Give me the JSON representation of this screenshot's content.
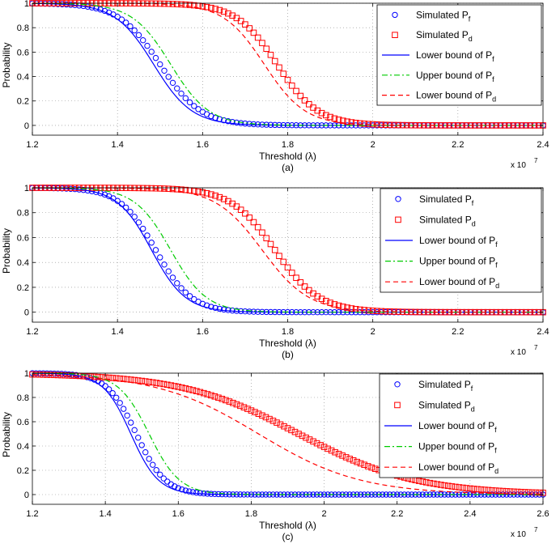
{
  "chart_data": [
    {
      "type": "line",
      "panel_label": "(a)",
      "xlabel": "Threshold (λ)",
      "ylabel": "Probability",
      "x_multiplier": "x 10",
      "x_multiplier_exp": "7",
      "xlim": [
        1.2,
        2.4
      ],
      "ylim": [
        -0.08,
        1.0
      ],
      "xticks": [
        1.2,
        1.4,
        1.6,
        1.8,
        2.0,
        2.2,
        2.4
      ],
      "xtick_labels": [
        "1.2",
        "1.4",
        "1.6",
        "1.8",
        "2",
        "2.2",
        "2.4"
      ],
      "yticks": [
        0,
        0.2,
        0.4,
        0.6,
        0.8,
        1
      ],
      "ytick_labels": [
        "0",
        "0.2",
        "0.4",
        "0.6",
        "0.8",
        "1"
      ],
      "grid": true,
      "legend_position": "top-right",
      "series": [
        {
          "name": "Simulated Pf",
          "label": "Simulated P",
          "sub": "f",
          "marker": "circle",
          "color": "#0000ff",
          "center": 1.5,
          "scale": 0.048,
          "x_start": 1.2,
          "x_end": 2.4,
          "n_points": 121
        },
        {
          "name": "Simulated Pd",
          "label": "Simulated P",
          "sub": "d",
          "marker": "square",
          "color": "#ff0000",
          "center": 1.775,
          "scale": 0.048,
          "x_start": 1.2,
          "x_end": 2.4,
          "n_points": 121
        },
        {
          "name": "Lower bound of Pf",
          "label": "Lower bound of P",
          "sub": "f",
          "line": "solid",
          "color": "#0000ff",
          "center": 1.485,
          "scale": 0.045
        },
        {
          "name": "Upper bound of Pf",
          "label": "Upper bound of P",
          "sub": "f",
          "line": "dashdot",
          "color": "#00cc00",
          "center": 1.525,
          "scale": 0.045
        },
        {
          "name": "Lower bound of Pd",
          "label": "Lower bound of P",
          "sub": "d",
          "line": "dashed",
          "color": "#ff0000",
          "center": 1.745,
          "scale": 0.048
        }
      ]
    },
    {
      "type": "line",
      "panel_label": "(b)",
      "xlabel": "Threshold (λ)",
      "ylabel": "Probability",
      "x_multiplier": "x 10",
      "x_multiplier_exp": "7",
      "xlim": [
        1.2,
        2.4
      ],
      "ylim": [
        -0.08,
        1.0
      ],
      "xticks": [
        1.2,
        1.4,
        1.6,
        1.8,
        2.0,
        2.2,
        2.4
      ],
      "xtick_labels": [
        "1.2",
        "1.4",
        "1.6",
        "1.8",
        "2",
        "2.2",
        "2.4"
      ],
      "yticks": [
        0,
        0.2,
        0.4,
        0.6,
        0.8,
        1
      ],
      "ytick_labels": [
        "0",
        "0.2",
        "0.4",
        "0.6",
        "0.8",
        "1"
      ],
      "grid": true,
      "legend_position": "top-right",
      "series": [
        {
          "name": "Simulated Pf",
          "label": "Simulated P",
          "sub": "f",
          "marker": "circle",
          "color": "#0000ff",
          "center": 1.49,
          "scale": 0.042,
          "x_start": 1.2,
          "x_end": 2.4,
          "n_points": 121
        },
        {
          "name": "Simulated Pd",
          "label": "Simulated  P",
          "sub": "d",
          "marker": "square",
          "color": "#ff0000",
          "center": 1.77,
          "scale": 0.052,
          "x_start": 1.2,
          "x_end": 2.4,
          "n_points": 121
        },
        {
          "name": "Lower bound of Pf",
          "label": "Lower bound of P",
          "sub": "f",
          "line": "solid",
          "color": "#0000ff",
          "center": 1.48,
          "scale": 0.04
        },
        {
          "name": "Upper bound of Pf",
          "label": "Upper bound of P",
          "sub": "f",
          "line": "dashdot",
          "color": "#00cc00",
          "center": 1.525,
          "scale": 0.042
        },
        {
          "name": "Lower bound of Pd",
          "label": "Lower bound of P",
          "sub": "d",
          "line": "dashed",
          "color": "#ff0000",
          "center": 1.74,
          "scale": 0.055
        }
      ]
    },
    {
      "type": "line",
      "panel_label": "(c)",
      "xlabel": "Threshold (λ)",
      "ylabel": "Probability",
      "x_multiplier": "x 10",
      "x_multiplier_exp": "7",
      "xlim": [
        1.2,
        2.6
      ],
      "ylim": [
        -0.08,
        1.0
      ],
      "xticks": [
        1.2,
        1.4,
        1.6,
        1.8,
        2.0,
        2.2,
        2.4,
        2.6
      ],
      "xtick_labels": [
        "1.2",
        "1.4",
        "1.6",
        "1.8",
        "2",
        "2.2",
        "2.4",
        "2.6"
      ],
      "yticks": [
        0,
        0.2,
        0.4,
        0.6,
        0.8,
        1
      ],
      "ytick_labels": [
        "0",
        "0.2",
        "0.4",
        "0.6",
        "0.8",
        "1"
      ],
      "grid": true,
      "legend_position": "top-right",
      "series": [
        {
          "name": "Simulated Pf",
          "label": "Simulated  P",
          "sub": "f",
          "marker": "circle",
          "color": "#0000ff",
          "center": 1.485,
          "scale": 0.04,
          "x_start": 1.2,
          "x_end": 2.6,
          "n_points": 141
        },
        {
          "name": "Simulated Pd",
          "label": "Simulated  P",
          "sub": "d",
          "marker": "square",
          "color": "#ff0000",
          "center": 1.93,
          "scale": 0.16,
          "x_start": 1.2,
          "x_end": 2.6,
          "n_points": 141
        },
        {
          "name": "Lower bound of Pf",
          "label": "Lower bound of P",
          "sub": "f",
          "line": "solid",
          "color": "#0000ff",
          "center": 1.47,
          "scale": 0.038
        },
        {
          "name": "Upper bound of Pf",
          "label": "Upper bound of P",
          "sub": "f",
          "line": "dashdot",
          "color": "#00cc00",
          "center": 1.52,
          "scale": 0.042
        },
        {
          "name": "Lower bound of Pd",
          "label": "Lower bound of P",
          "sub": "d",
          "line": "dashed",
          "color": "#ff0000",
          "center": 1.82,
          "scale": 0.14
        }
      ]
    }
  ]
}
